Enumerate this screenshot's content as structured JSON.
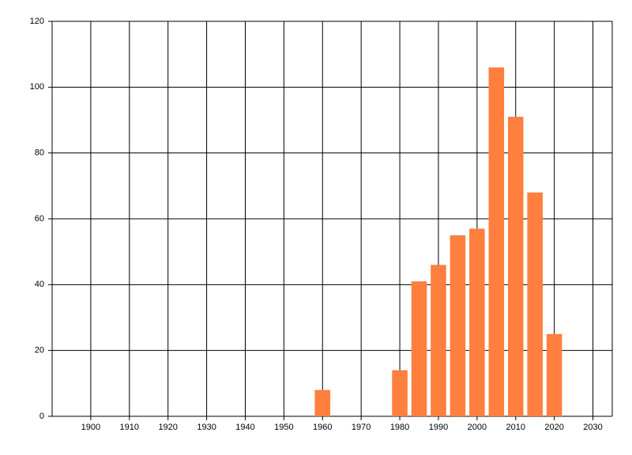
{
  "chart_data": {
    "type": "bar",
    "x": [
      1960,
      1980,
      1985,
      1990,
      1995,
      2000,
      2005,
      2010,
      2015,
      2020
    ],
    "values": [
      8,
      14,
      41,
      46,
      55,
      57,
      106,
      91,
      68,
      25
    ],
    "color": "#ff7f3f",
    "xlim": [
      1890,
      2035
    ],
    "xticks": [
      1900,
      1910,
      1920,
      1930,
      1940,
      1950,
      1960,
      1970,
      1980,
      1990,
      2000,
      2010,
      2020,
      2030
    ],
    "ylim": [
      0,
      120
    ],
    "yticks": [
      0,
      20,
      40,
      60,
      80,
      100,
      120
    ],
    "grid": true
  }
}
